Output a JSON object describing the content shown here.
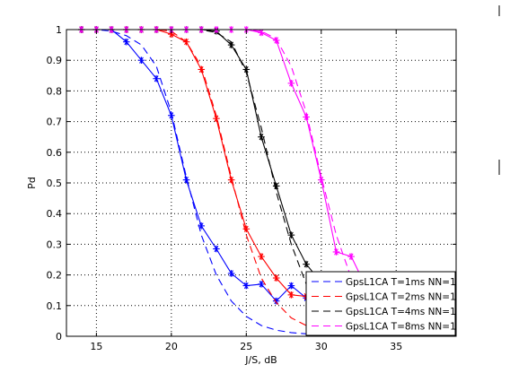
{
  "chart_data": {
    "type": "line",
    "title": "",
    "xlabel": "J/S, dB",
    "ylabel": "Pd",
    "xlim": [
      13,
      39
    ],
    "ylim": [
      0,
      1
    ],
    "grid": true,
    "legend_placement": "bottom-right",
    "x_ticks": [
      15,
      20,
      25,
      30,
      35
    ],
    "y_ticks": [
      0,
      0.1,
      0.2,
      0.3,
      0.4,
      0.5,
      0.6,
      0.7,
      0.8,
      0.9,
      1
    ],
    "x_tick_labels": [
      "15",
      "20",
      "25",
      "30",
      "35"
    ],
    "y_tick_labels": [
      "0",
      "0.1",
      "0.2",
      "0.3",
      "0.4",
      "0.5",
      "0.6",
      "0.7",
      "0.8",
      "0.9",
      "1"
    ],
    "series": [
      {
        "name": "GpsL1CA T=1ms NN=1",
        "color": "#0000ff",
        "measured": {
          "x": [
            13,
            14,
            15,
            16,
            17,
            18,
            19,
            20,
            21,
            22,
            23,
            24,
            25,
            26,
            27,
            28,
            29,
            30,
            31,
            32,
            33,
            34,
            35,
            36,
            37,
            38,
            39
          ],
          "y": [
            1.0,
            1.0,
            1.0,
            1.0,
            0.96,
            0.9,
            0.84,
            0.72,
            0.51,
            0.36,
            0.285,
            0.205,
            0.165,
            0.17,
            0.115,
            0.165,
            0.125,
            0.13,
            0.135,
            0.12,
            0.115,
            0.1,
            0.11,
            0.12,
            0.115,
            0.1,
            0.105
          ]
        },
        "theoretical": {
          "x": [
            13,
            15,
            16,
            17,
            18,
            19,
            20,
            21,
            22,
            23,
            24,
            25,
            26,
            27,
            28,
            29,
            30,
            31,
            32,
            33,
            35,
            37,
            39
          ],
          "y": [
            1.0,
            1.0,
            0.995,
            0.98,
            0.95,
            0.88,
            0.73,
            0.52,
            0.33,
            0.2,
            0.115,
            0.065,
            0.035,
            0.02,
            0.012,
            0.008,
            0.005,
            0.004,
            0.003,
            0.003,
            0.002,
            0.002,
            0.002
          ]
        }
      },
      {
        "name": "GpsL1CA T=2ms NN=1",
        "color": "#ff0000",
        "measured": {
          "x": [
            13,
            14,
            15,
            16,
            17,
            18,
            19,
            20,
            21,
            22,
            23,
            24,
            25,
            26,
            27,
            28,
            29,
            30,
            31,
            32,
            33,
            34,
            35,
            36,
            37,
            38,
            39
          ],
          "y": [
            1.0,
            1.0,
            1.0,
            1.0,
            1.0,
            1.0,
            1.0,
            0.985,
            0.96,
            0.87,
            0.71,
            0.51,
            0.35,
            0.26,
            0.19,
            0.135,
            0.13,
            0.12,
            0.11,
            0.1,
            0.095,
            0.1,
            0.1,
            0.09,
            0.095,
            0.1,
            0.095
          ]
        },
        "theoretical": {
          "x": [
            13,
            19,
            20,
            21,
            22,
            23,
            24,
            25,
            26,
            27,
            28,
            29,
            30,
            31,
            32,
            33,
            35,
            37,
            39
          ],
          "y": [
            1.0,
            1.0,
            0.995,
            0.96,
            0.88,
            0.72,
            0.52,
            0.33,
            0.19,
            0.11,
            0.06,
            0.035,
            0.02,
            0.012,
            0.008,
            0.006,
            0.004,
            0.003,
            0.003
          ]
        }
      },
      {
        "name": "GpsL1CA T=4ms NN=1",
        "color": "#000000",
        "measured": {
          "x": [
            13,
            14,
            15,
            16,
            17,
            18,
            19,
            20,
            21,
            22,
            23,
            24,
            25,
            26,
            27,
            28,
            29,
            30,
            31,
            32,
            33,
            34,
            35,
            36,
            37,
            38,
            39
          ],
          "y": [
            1.0,
            1.0,
            1.0,
            1.0,
            1.0,
            1.0,
            1.0,
            1.0,
            1.0,
            1.0,
            0.995,
            0.95,
            0.87,
            0.65,
            0.49,
            0.33,
            0.235,
            0.175,
            0.145,
            0.13,
            0.12,
            0.1,
            0.09,
            0.095,
            0.09,
            0.09,
            0.09
          ]
        },
        "theoretical": {
          "x": [
            13,
            22,
            23,
            24,
            25,
            26,
            27,
            28,
            29,
            30,
            31,
            32,
            33,
            35,
            37,
            39
          ],
          "y": [
            1.0,
            1.0,
            0.99,
            0.96,
            0.86,
            0.68,
            0.47,
            0.3,
            0.17,
            0.09,
            0.05,
            0.025,
            0.015,
            0.007,
            0.005,
            0.004
          ]
        }
      },
      {
        "name": "GpsL1CA T=8ms NN=1",
        "color": "#ff00ff",
        "measured": {
          "x": [
            13,
            14,
            15,
            16,
            17,
            18,
            19,
            20,
            21,
            22,
            23,
            24,
            25,
            26,
            27,
            28,
            29,
            30,
            31,
            32,
            33,
            34,
            35,
            36,
            37,
            38,
            39
          ],
          "y": [
            1.0,
            1.0,
            1.0,
            1.0,
            1.0,
            1.0,
            1.0,
            1.0,
            1.0,
            1.0,
            1.0,
            1.0,
            1.0,
            0.99,
            0.965,
            0.825,
            0.715,
            0.51,
            0.275,
            0.26,
            0.16,
            0.13,
            0.12,
            0.11,
            0.105,
            0.1,
            0.1
          ]
        },
        "theoretical": {
          "x": [
            13,
            25,
            26,
            27,
            28,
            29,
            30,
            31,
            32,
            33,
            34,
            35,
            36,
            37,
            39
          ],
          "y": [
            1.0,
            1.0,
            0.995,
            0.97,
            0.88,
            0.73,
            0.52,
            0.33,
            0.19,
            0.1,
            0.05,
            0.025,
            0.012,
            0.007,
            0.004
          ]
        }
      }
    ]
  }
}
